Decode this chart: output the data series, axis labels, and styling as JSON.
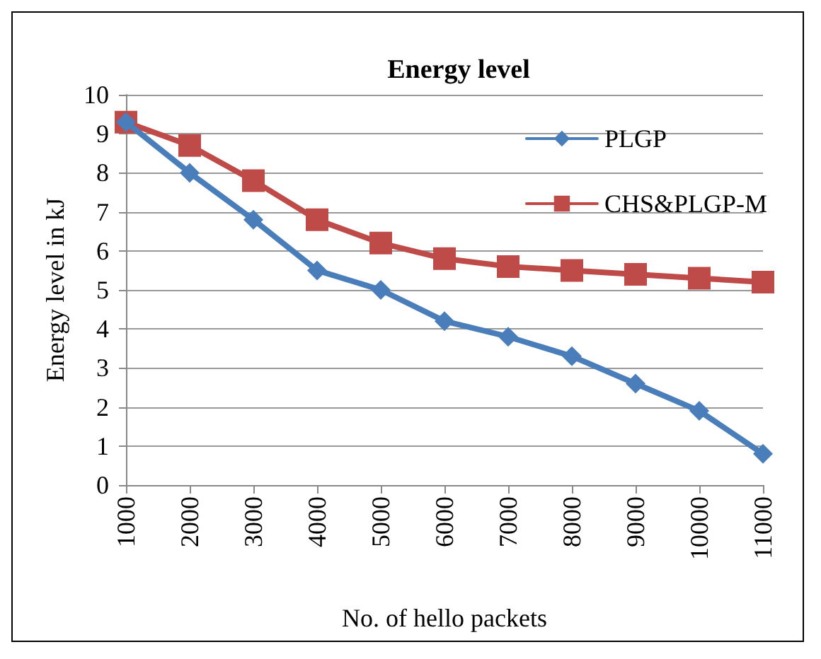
{
  "chart_data": {
    "type": "line",
    "title": "Energy level",
    "xlabel": "No. of hello packets",
    "ylabel": "Energy level in kJ",
    "categories": [
      "1000",
      "2000",
      "3000",
      "4000",
      "5000",
      "6000",
      "7000",
      "8000",
      "9000",
      "10000",
      "11000"
    ],
    "series": [
      {
        "name": "PLGP",
        "color": "#4a7ebb",
        "marker": "diamond",
        "values": [
          9.3,
          8.0,
          6.8,
          5.5,
          5.0,
          4.2,
          3.8,
          3.3,
          2.6,
          1.9,
          0.8
        ]
      },
      {
        "name": "CHS&PLGP-M",
        "color": "#be4b48",
        "marker": "square",
        "values": [
          9.3,
          8.7,
          7.8,
          6.8,
          6.2,
          5.8,
          5.6,
          5.5,
          5.4,
          5.3,
          5.2
        ]
      }
    ],
    "ylim": [
      0,
      10
    ],
    "yticks": [
      0,
      1,
      2,
      3,
      4,
      5,
      6,
      7,
      8,
      9,
      10
    ],
    "grid": "y",
    "legend": "top right",
    "line_style": "solid"
  }
}
